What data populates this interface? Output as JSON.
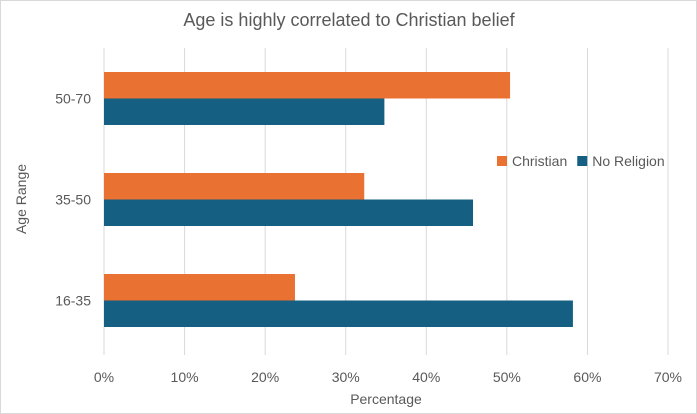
{
  "chart_data": {
    "type": "bar",
    "orientation": "horizontal",
    "title": "Age is highly correlated to Christian belief",
    "xlabel": "Percentage",
    "ylabel": "Age Range",
    "categories": [
      "16-35",
      "35-50",
      "50-70"
    ],
    "series": [
      {
        "name": "Christian",
        "color": "#E97132",
        "values": [
          23.7,
          32.3,
          50.4
        ]
      },
      {
        "name": "No Religion",
        "color": "#156082",
        "values": [
          58.2,
          45.8,
          34.8
        ]
      }
    ],
    "xlim": [
      0,
      70
    ],
    "xticks": [
      "0%",
      "10%",
      "20%",
      "30%",
      "40%",
      "50%",
      "60%",
      "70%"
    ],
    "grid": true,
    "legend": "right"
  }
}
